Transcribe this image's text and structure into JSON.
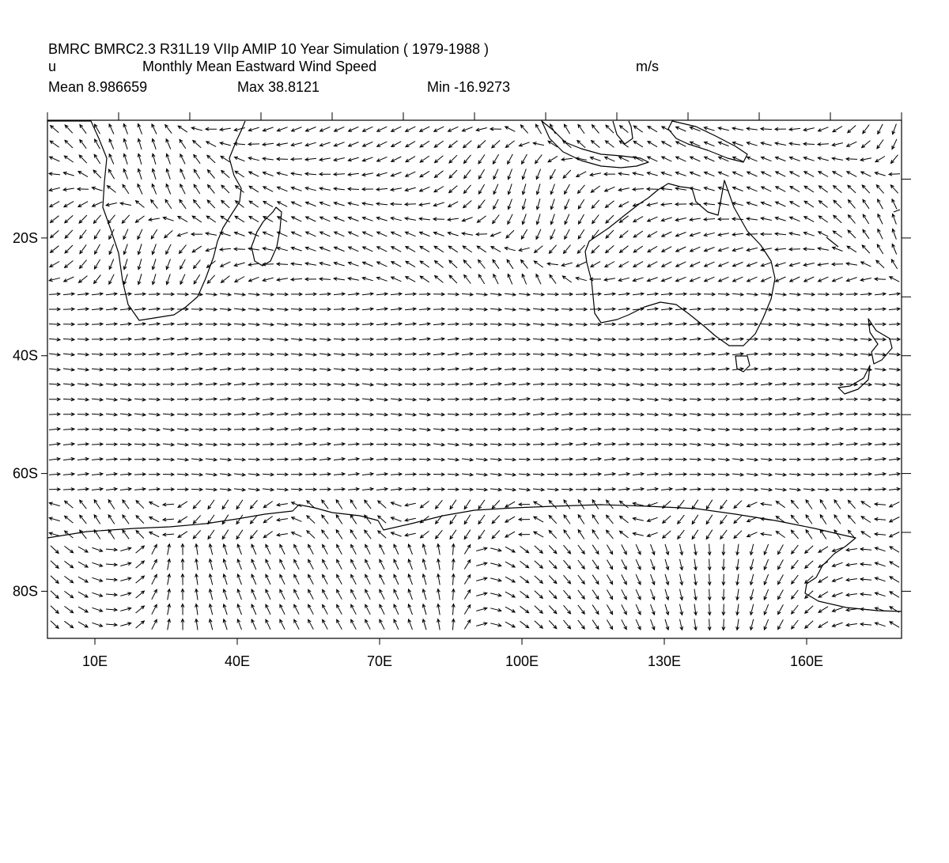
{
  "header": {
    "line1": "BMRC BMRC2.3 R31L19 VIIp AMIP 10 Year Simulation ( 1979-1988 )",
    "variable": "u",
    "description": "Monthly Mean Eastward Wind Speed",
    "units": "m/s",
    "mean": "Mean 8.986659",
    "max": "Max 38.8121",
    "min": "Min -16.9273"
  },
  "chart_data": {
    "type": "vector-field",
    "title": "Monthly Mean Eastward Wind Speed",
    "xlabel": "",
    "ylabel": "",
    "xlim": [
      0,
      180
    ],
    "ylim": [
      -88,
      0
    ],
    "grid": false,
    "x_ticks": [
      "10E",
      "40E",
      "70E",
      "100E",
      "130E",
      "160E"
    ],
    "x_tick_values": [
      10,
      40,
      70,
      100,
      130,
      160
    ],
    "y_ticks": [
      "20S",
      "40S",
      "60S",
      "80S"
    ],
    "y_tick_values": [
      -20,
      -40,
      -60,
      -80
    ],
    "statistics": {
      "mean": 8.986659,
      "max": 38.8121,
      "min": -16.9273
    },
    "units": "m/s",
    "colors": {
      "arrows": "#000000",
      "coastline": "#000000",
      "frame": "#000000"
    }
  }
}
